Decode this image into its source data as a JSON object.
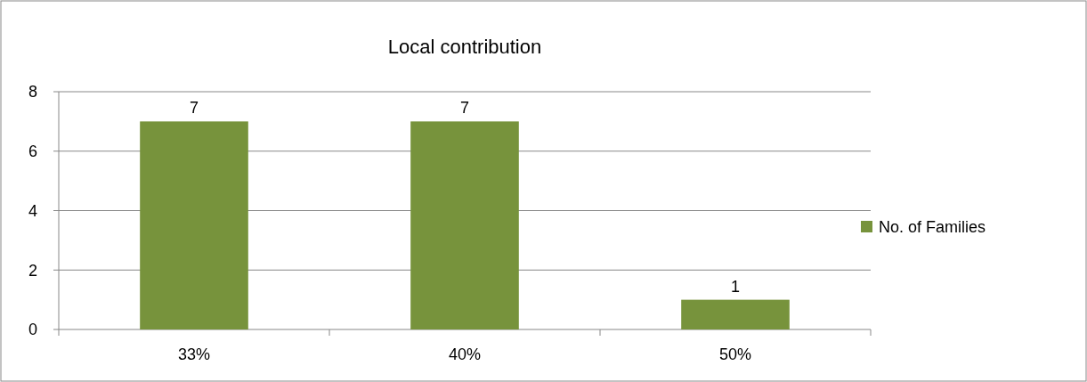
{
  "chart_data": {
    "type": "bar",
    "title": "Local contribution",
    "categories": [
      "33%",
      "40%",
      "50%"
    ],
    "series": [
      {
        "name": "No. of Families",
        "color": "#77933c",
        "values": [
          7,
          7,
          1
        ]
      }
    ],
    "ylim": [
      0,
      8
    ],
    "yticks": [
      0,
      2,
      4,
      6,
      8
    ],
    "grid": "y",
    "legend": "right",
    "data_labels": true
  }
}
